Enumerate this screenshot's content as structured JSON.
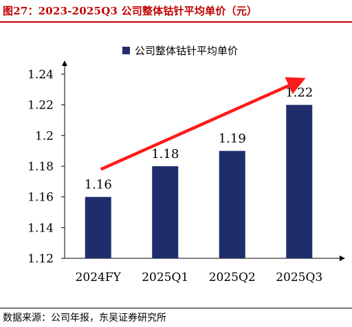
{
  "figure": {
    "title": "图27：2023-2025Q3 公司整体钴针平均单价（元）",
    "source": "数据来源：公司年报，东吴证券研究所"
  },
  "colors": {
    "title": "#c00000",
    "bar": "#1f2d6b",
    "arrow": "#ff1a1a"
  },
  "chart_data": {
    "type": "bar",
    "categories": [
      "2024FY",
      "2025Q1",
      "2025Q2",
      "2025Q3"
    ],
    "series": [
      {
        "name": "公司整体钴针平均单价",
        "values": [
          1.16,
          1.18,
          1.19,
          1.22
        ]
      }
    ],
    "data_labels": [
      "1.16",
      "1.18",
      "1.19",
      "1.22"
    ],
    "ylim": [
      1.12,
      1.24
    ],
    "yticks": [
      1.12,
      1.14,
      1.16,
      1.18,
      1.2,
      1.22,
      1.24
    ],
    "ytick_labels": [
      "1.12",
      "1.14",
      "1.16",
      "1.18",
      "1.2",
      "1.22",
      "1.24"
    ],
    "legend_position": "top-center",
    "grid": false,
    "annotations": [
      {
        "type": "trend-arrow",
        "from": {
          "x": "2024FY",
          "y": 1.178
        },
        "to": {
          "x": "2025Q3",
          "y": 1.236
        }
      }
    ]
  }
}
